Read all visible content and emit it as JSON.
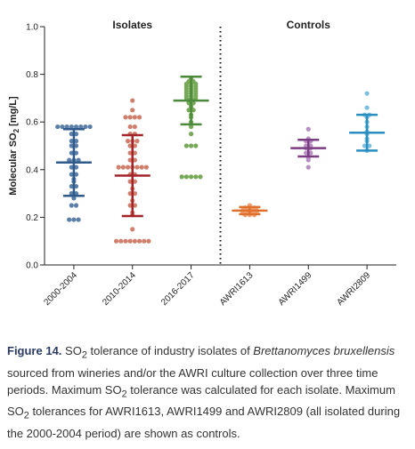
{
  "chart_data": {
    "type": "dot_plot",
    "y_label": {
      "text": "Molecular SO",
      "sub": "2",
      "suffix": " [mg/L]"
    },
    "group_headers": [
      {
        "text": "Isolates",
        "span": [
          0,
          2
        ]
      },
      {
        "text": "Controls",
        "span": [
          3,
          5
        ]
      }
    ],
    "ylim": [
      0,
      1
    ],
    "yticks": [
      {
        "value": 0,
        "label": "0.0"
      },
      {
        "value": 0.2,
        "label": "0.2"
      },
      {
        "value": 0.4,
        "label": "0.4"
      },
      {
        "value": 0.6,
        "label": "0.6"
      },
      {
        "value": 0.8,
        "label": "0.8"
      },
      {
        "value": 1,
        "label": "1.0"
      }
    ],
    "divider_after": 2,
    "groups": [
      {
        "name": "2000-2004",
        "color": "#5b7fa8",
        "bar_color": "#2e5b8c",
        "mean": 0.43,
        "sd": 0.14,
        "points": [
          0.58,
          0.58,
          0.58,
          0.58,
          0.58,
          0.58,
          0.58,
          0.58,
          0.55,
          0.55,
          0.52,
          0.52,
          0.5,
          0.5,
          0.47,
          0.47,
          0.44,
          0.44,
          0.44,
          0.41,
          0.41,
          0.38,
          0.38,
          0.36,
          0.35,
          0.33,
          0.33,
          0.3,
          0.3,
          0.28,
          0.25,
          0.25,
          0.19,
          0.19,
          0.19
        ]
      },
      {
        "name": "2010-2014",
        "color": "#cf7f6c",
        "bar_color": "#a3252a",
        "mean": 0.375,
        "sd": 0.17,
        "points": [
          0.69,
          0.65,
          0.62,
          0.62,
          0.62,
          0.62,
          0.58,
          0.58,
          0.55,
          0.55,
          0.52,
          0.52,
          0.52,
          0.5,
          0.5,
          0.47,
          0.47,
          0.44,
          0.44,
          0.41,
          0.41,
          0.41,
          0.41,
          0.41,
          0.41,
          0.41,
          0.38,
          0.38,
          0.35,
          0.35,
          0.32,
          0.3,
          0.3,
          0.27,
          0.25,
          0.25,
          0.22,
          0.21,
          0.15,
          0.1,
          0.1,
          0.1,
          0.1,
          0.1,
          0.1,
          0.1,
          0.1
        ]
      },
      {
        "name": "2016-2017",
        "color": "#76a857",
        "bar_color": "#4a8a3a",
        "mean": 0.69,
        "sd": 0.1,
        "points": [
          0.78,
          0.77,
          0.77,
          0.76,
          0.76,
          0.76,
          0.75,
          0.75,
          0.75,
          0.74,
          0.74,
          0.74,
          0.73,
          0.73,
          0.73,
          0.72,
          0.72,
          0.72,
          0.71,
          0.71,
          0.71,
          0.7,
          0.7,
          0.7,
          0.69,
          0.69,
          0.68,
          0.68,
          0.67,
          0.66,
          0.65,
          0.65,
          0.63,
          0.62,
          0.6,
          0.58,
          0.55,
          0.5,
          0.5,
          0.5,
          0.37,
          0.37,
          0.37,
          0.37,
          0.37
        ]
      },
      {
        "name": "AWRI1613",
        "color": "#f0a070",
        "bar_color": "#e0702e",
        "mean": 0.228,
        "sd": 0.015,
        "points": [
          0.25,
          0.24,
          0.24,
          0.24,
          0.23,
          0.23,
          0.23,
          0.23,
          0.22,
          0.22,
          0.22,
          0.22,
          0.21,
          0.21,
          0.21
        ]
      },
      {
        "name": "AWRI1499",
        "color": "#b88fc4",
        "bar_color": "#7a3d82",
        "mean": 0.49,
        "sd": 0.035,
        "points": [
          0.57,
          0.53,
          0.52,
          0.52,
          0.5,
          0.5,
          0.49,
          0.49,
          0.47,
          0.47,
          0.45,
          0.44,
          0.41
        ]
      },
      {
        "name": "AWRI2809",
        "color": "#7dbfe0",
        "bar_color": "#2a8fbf",
        "mean": 0.555,
        "sd": 0.075,
        "points": [
          0.72,
          0.66,
          0.63,
          0.63,
          0.62,
          0.6,
          0.58,
          0.56,
          0.55,
          0.53,
          0.52,
          0.5,
          0.5,
          0.48
        ]
      }
    ]
  },
  "caption": [
    "Figure 14.",
    " SO",
    "2",
    " tolerance of industry isolates of ",
    "Brettanomyces bruxellensis",
    " sourced from wineries and/or the AWRI culture collection over three time periods. Maximum SO",
    "2",
    " tolerance was calculated for each isolate. Maximum SO",
    "2",
    " tolerances for AWRI1613, AWRI1499 and AWRI2809 (all isolated during the 2000-2004 period) are shown as controls."
  ]
}
